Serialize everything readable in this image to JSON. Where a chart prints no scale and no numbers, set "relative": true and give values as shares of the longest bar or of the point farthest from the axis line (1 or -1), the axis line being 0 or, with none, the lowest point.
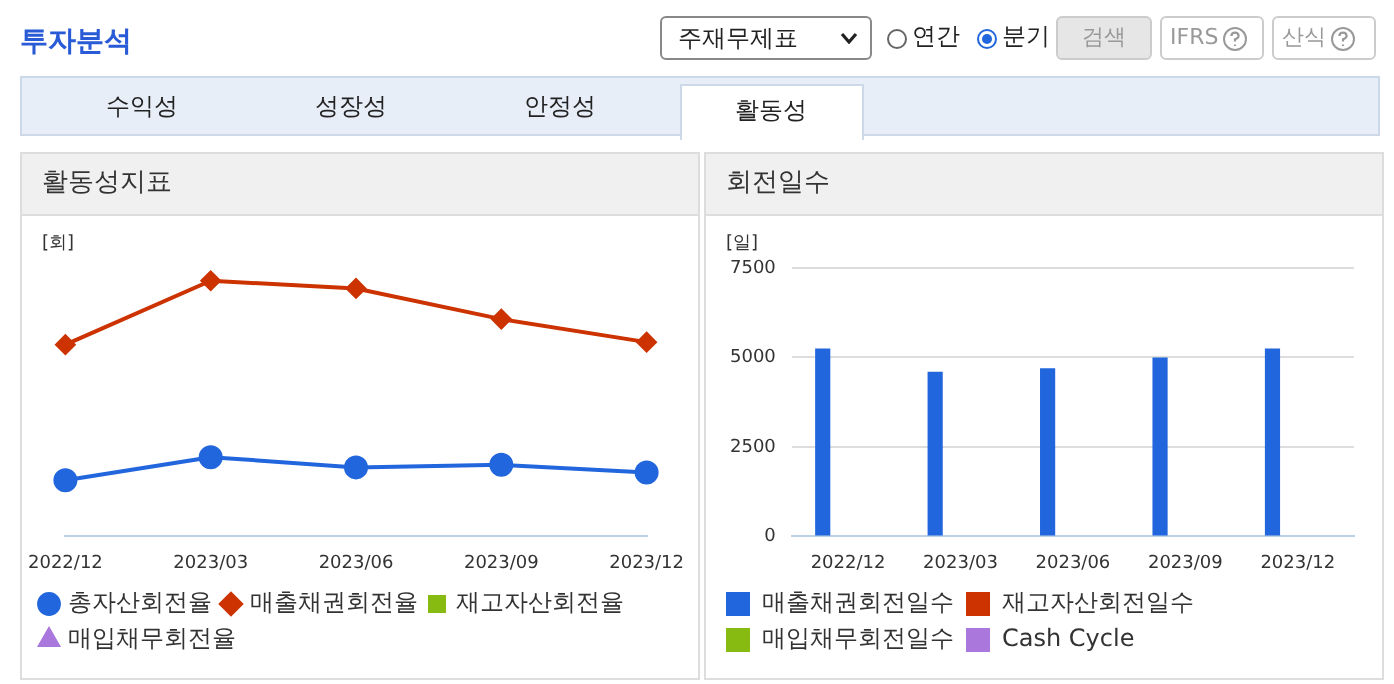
{
  "chart_data": [
    {
      "type": "other",
      "title": "투자분석",
      "annotations": [
        "주재무제표",
        "연간",
        "분기",
        "검색",
        "IFRS",
        "산식",
        "수익성",
        "성장성",
        "안정성",
        "활동성"
      ]
    },
    {
      "type": "line",
      "title": "활동성지표",
      "ylabel": "[회]",
      "relative": true,
      "legend": "bottom",
      "categories": [
        "2022/12",
        "2023/03",
        "2023/06",
        "2023/09",
        "2023/12"
      ],
      "series": [
        {
          "name": "총자산회전율",
          "color": "#2266dd",
          "marker": "circle",
          "values": [
            0.22,
            0.31,
            0.27,
            0.28,
            0.25
          ]
        },
        {
          "name": "매출채권회전율",
          "color": "#cc3300",
          "marker": "diamond",
          "values": [
            0.75,
            1,
            0.97,
            0.85,
            0.76
          ]
        },
        {
          "name": "재고자산회전율",
          "color": "#88bb11",
          "marker": "square",
          "values": [
            null,
            null,
            null,
            null,
            null
          ]
        },
        {
          "name": "매입채무회전율",
          "color": "#aa77dd",
          "marker": "triangle",
          "values": [
            null,
            null,
            null,
            null,
            null
          ]
        }
      ]
    },
    {
      "type": "bar",
      "title": "회전일수",
      "ylabel": "[일]",
      "grid": "y",
      "legend": "bottom",
      "ylim": [
        0,
        7500
      ],
      "yticks": [
        0,
        2500,
        5000,
        7500
      ],
      "categories": [
        "2022/12",
        "2023/03",
        "2023/06",
        "2023/09",
        "2023/12"
      ],
      "series": [
        {
          "name": "매출채권회전일수",
          "color": "#2266dd",
          "values": [
            5250,
            4600,
            4700,
            5000,
            5250
          ]
        },
        {
          "name": "재고자산회전일수",
          "color": "#cc3300",
          "values": [
            null,
            null,
            null,
            null,
            null
          ]
        },
        {
          "name": "매입채무회전일수",
          "color": "#88bb11",
          "values": [
            null,
            null,
            null,
            null,
            null
          ]
        },
        {
          "name": "Cash Cycle",
          "color": "#aa77dd",
          "values": [
            null,
            null,
            null,
            null,
            null
          ]
        }
      ]
    }
  ]
}
